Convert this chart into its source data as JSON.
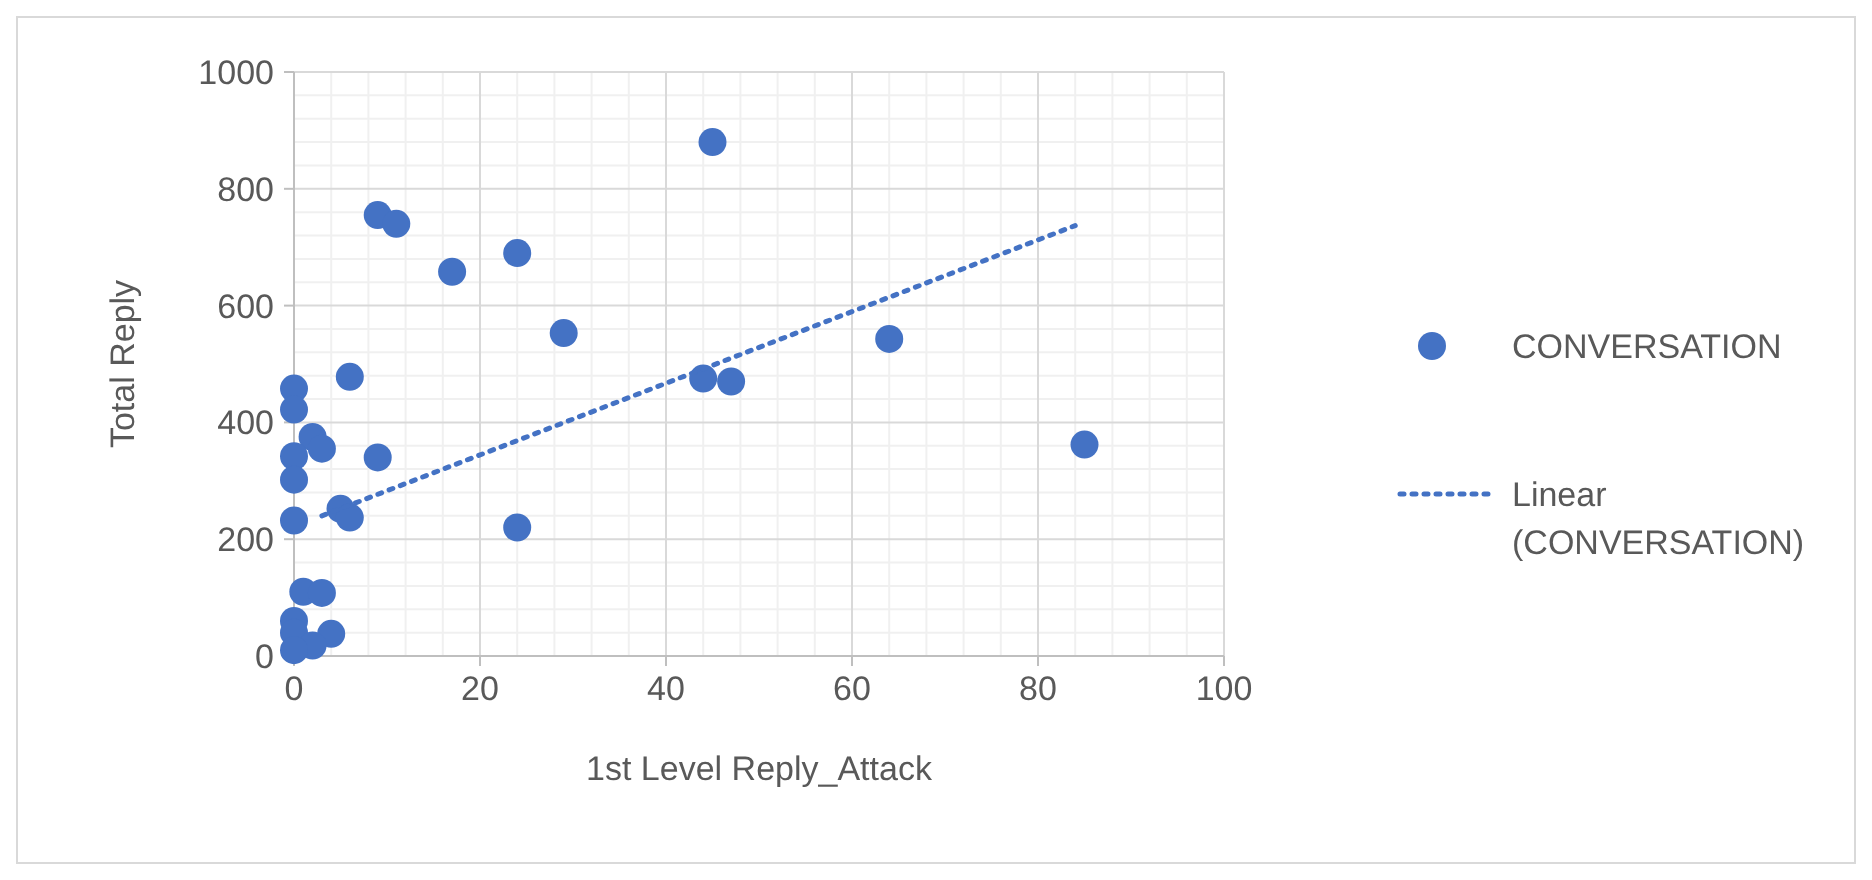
{
  "chart_data": {
    "type": "scatter",
    "xlabel": "1st Level Reply_Attack",
    "ylabel": "Total Reply",
    "xlim": [
      0,
      100
    ],
    "ylim": [
      0,
      1000
    ],
    "xticks": [
      0,
      20,
      40,
      60,
      80,
      100
    ],
    "yticks": [
      0,
      200,
      400,
      600,
      800,
      1000
    ],
    "grid": true,
    "legend": "right",
    "series": [
      {
        "name": "CONVERSATION",
        "color": "#4472c4",
        "marker": "circle",
        "x": [
          45,
          9,
          11,
          17,
          24,
          29,
          64,
          44,
          47,
          85,
          6,
          0,
          0,
          2,
          3,
          0,
          9,
          0,
          5,
          6,
          0,
          24,
          1,
          3,
          0,
          0,
          4,
          2,
          0
        ],
        "values": [
          880,
          755,
          740,
          658,
          690,
          553,
          543,
          475,
          470,
          362,
          478,
          458,
          422,
          375,
          355,
          342,
          340,
          302,
          252,
          237,
          232,
          220,
          110,
          108,
          60,
          40,
          38,
          18,
          10
        ]
      },
      {
        "name": "Linear (CONVERSATION)",
        "type": "line",
        "color": "#4472c4",
        "line_style": "dotted",
        "marker": "none",
        "x": [
          3,
          84
        ],
        "values": [
          240,
          737
        ]
      }
    ]
  }
}
